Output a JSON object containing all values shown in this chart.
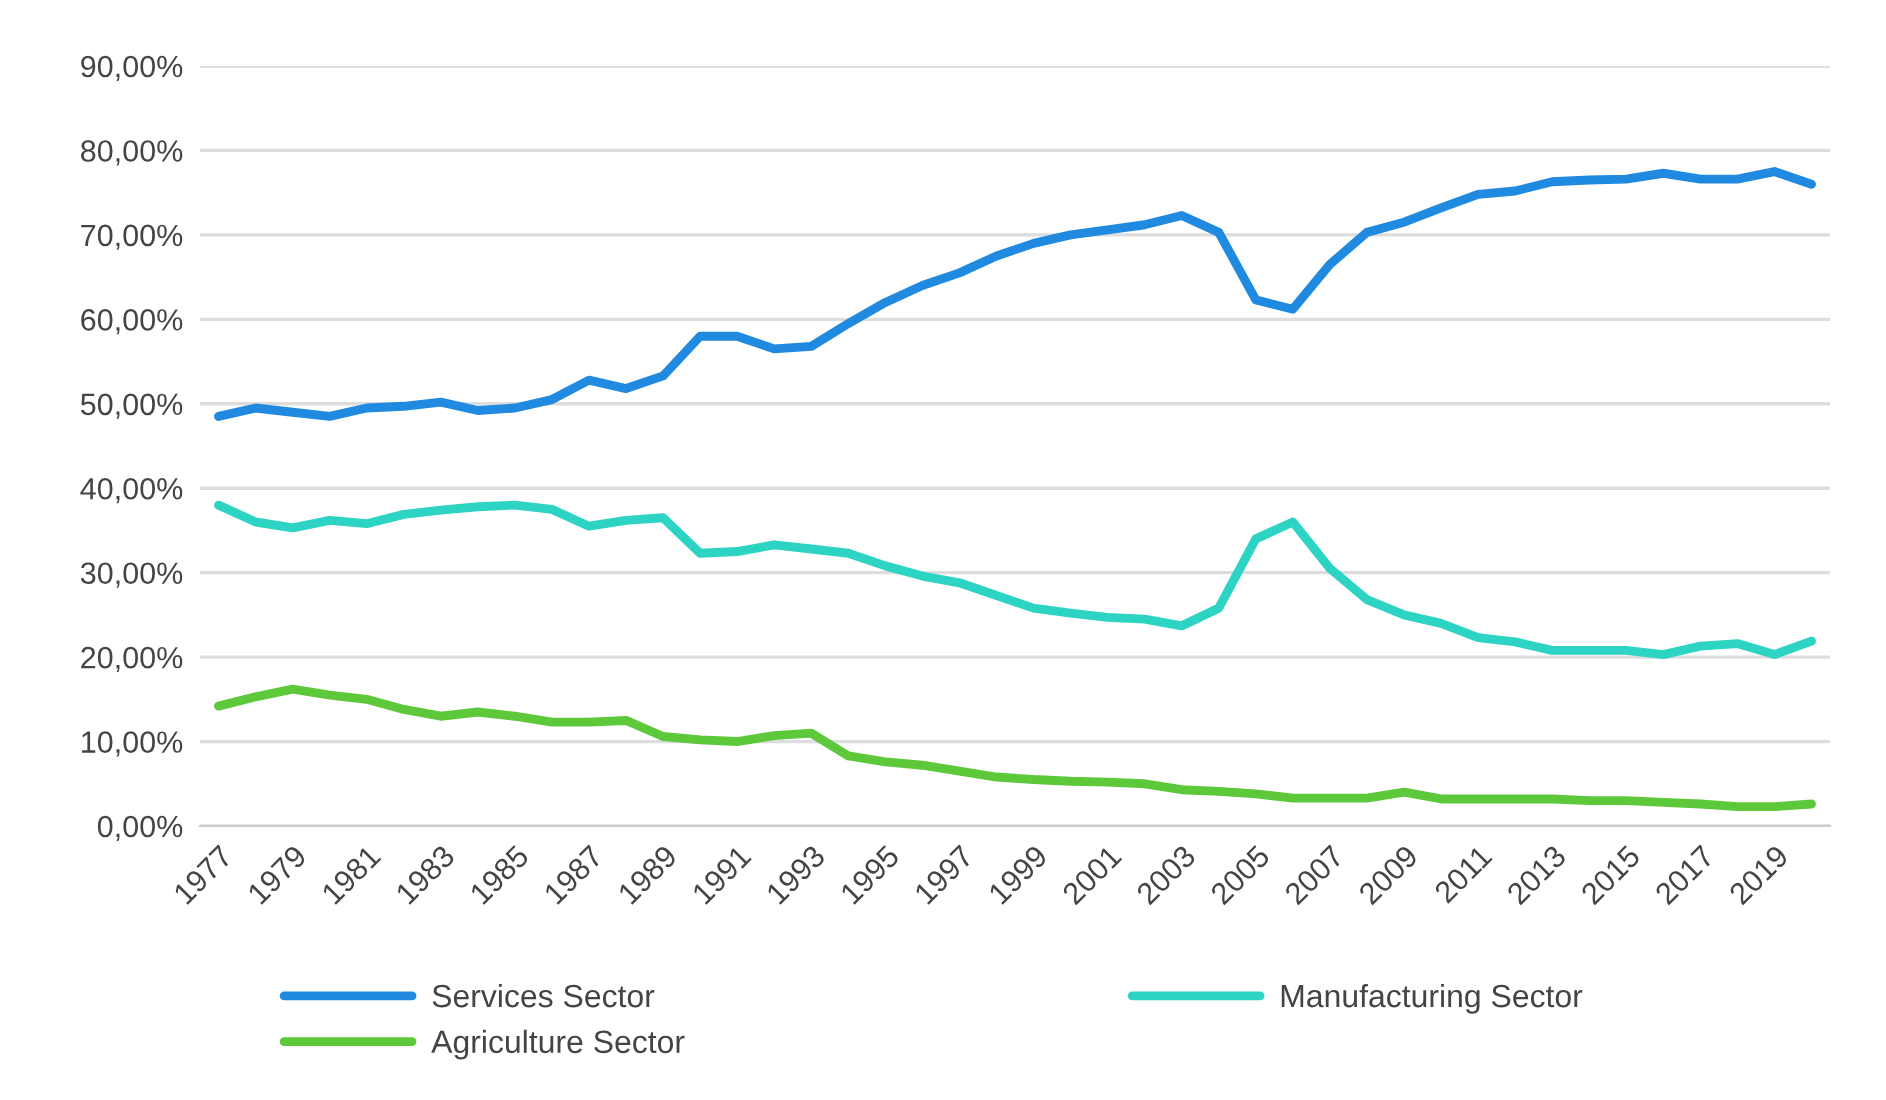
{
  "chart_data": {
    "type": "line",
    "categories": [
      "1977",
      null,
      "1979",
      null,
      "1981",
      null,
      "1983",
      null,
      "1985",
      null,
      "1987",
      null,
      "1989",
      null,
      "1991",
      null,
      "1993",
      null,
      "1995",
      null,
      "1997",
      null,
      "1999",
      null,
      "2001",
      null,
      "2003",
      null,
      "2005",
      null,
      "2007",
      null,
      "2009",
      null,
      "2011",
      null,
      "2013",
      null,
      "2015",
      null,
      "2017",
      null,
      "2019",
      null
    ],
    "series": [
      {
        "name": "Services Sector",
        "color": "#1f8ae0",
        "values": [
          48.5,
          49.5,
          49,
          48.5,
          49.5,
          49.7,
          50.2,
          49.2,
          49.5,
          50.5,
          52.8,
          51.8,
          53.3,
          58,
          58,
          56.5,
          56.8,
          59.5,
          62,
          64,
          65.5,
          67.5,
          69,
          70,
          70.6,
          71.2,
          72.3,
          70.3,
          62.3,
          61.2,
          66.5,
          70.3,
          71.5,
          73.2,
          74.8,
          75.2,
          76.3,
          76.5,
          76.6,
          77.3,
          76.6,
          76.6,
          77.5,
          76
        ]
      },
      {
        "name": "Manufacturing Sector",
        "color": "#2dd4c4",
        "values": [
          38,
          36,
          35.3,
          36.2,
          35.8,
          36.9,
          37.4,
          37.8,
          38,
          37.5,
          35.5,
          36.2,
          36.5,
          32.3,
          32.5,
          33.3,
          32.8,
          32.3,
          30.8,
          29.6,
          28.8,
          27.3,
          25.8,
          25.2,
          24.7,
          24.5,
          23.7,
          25.8,
          34,
          36,
          30.5,
          26.8,
          25,
          24,
          22.3,
          21.8,
          20.8,
          20.8,
          20.8,
          20.3,
          21.3,
          21.6,
          20.3,
          21.9
        ]
      },
      {
        "name": "Agriculture Sector",
        "color": "#5cc83a",
        "values": [
          14.2,
          15.3,
          16.2,
          15.5,
          15,
          13.8,
          13,
          13.5,
          13,
          12.3,
          12.3,
          12.5,
          10.6,
          10.2,
          10,
          10.7,
          11,
          8.3,
          7.6,
          7.2,
          6.5,
          5.8,
          5.5,
          5.3,
          5.2,
          5,
          4.3,
          4.1,
          3.8,
          3.3,
          3.3,
          3.3,
          4,
          3.2,
          3.2,
          3.2,
          3.2,
          3,
          3,
          2.8,
          2.6,
          2.3,
          2.3,
          2.6
        ]
      }
    ],
    "ylim": [
      0,
      90
    ],
    "yticks": [
      {
        "value": 0,
        "label": "0,00%"
      },
      {
        "value": 10,
        "label": "10,00%"
      },
      {
        "value": 20,
        "label": "20,00%"
      },
      {
        "value": 30,
        "label": "30,00%"
      },
      {
        "value": 40,
        "label": "40,00%"
      },
      {
        "value": 50,
        "label": "50,00%"
      },
      {
        "value": 60,
        "label": "60,00%"
      },
      {
        "value": 70,
        "label": "70,00%"
      },
      {
        "value": 80,
        "label": "80,00%"
      },
      {
        "value": 90,
        "label": "90,00%"
      }
    ],
    "grid": "y",
    "legend": "bottom",
    "line_style": "solid",
    "marker": "none"
  }
}
